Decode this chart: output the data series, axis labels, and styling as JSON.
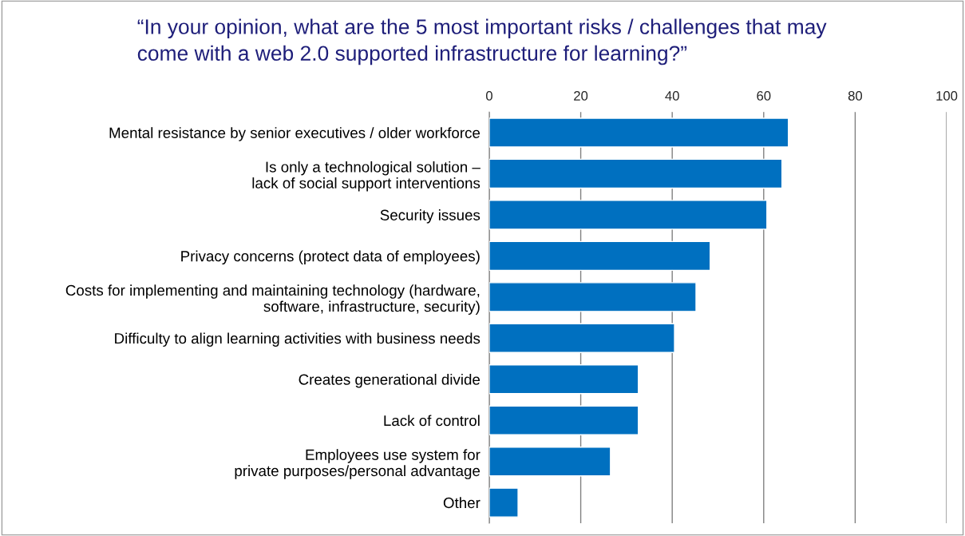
{
  "chart_data": {
    "type": "bar",
    "orientation": "horizontal",
    "title": "“In your opinion, what are the 5 most important risks / challenges that may\ncome with a web 2.0 supported infrastructure for learning?”",
    "categories": [
      "Mental resistance by senior executives / older workforce",
      "Is only a technological solution –\nlack of social support interventions",
      "Security issues",
      "Privacy concerns (protect data of employees)",
      "Costs for implementing and maintaining technology (hardware,\nsoftware, infrastructure, security)",
      "Difficulty to align learning activities with business needs",
      "Creates generational divide",
      "Lack of control",
      "Employees use system for\nprivate purposes/personal advantage",
      "Other"
    ],
    "values": [
      65.4,
      64.0,
      60.7,
      48.3,
      45.2,
      40.5,
      32.6,
      32.6,
      26.5,
      6.3
    ],
    "color": "#0070c0",
    "xlim": [
      0,
      100
    ],
    "xticks": [
      0,
      20,
      40,
      60,
      80,
      100
    ],
    "grid": "x"
  }
}
